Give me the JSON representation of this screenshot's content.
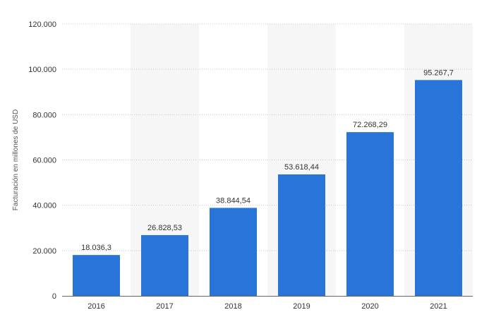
{
  "chart_data": {
    "type": "bar",
    "categories": [
      "2016",
      "2017",
      "2018",
      "2019",
      "2020",
      "2021"
    ],
    "values": [
      18036.3,
      26828.53,
      38844.54,
      53618.44,
      72268.29,
      95267.7
    ],
    "data_labels": [
      "18.036,3",
      "26.828,53",
      "38.844,54",
      "53.618,44",
      "72.268,29",
      "95.267,7"
    ],
    "y_ticks": [
      0,
      20000,
      40000,
      60000,
      80000,
      100000,
      120000
    ],
    "y_tick_labels": [
      "0",
      "20.000",
      "40.000",
      "60.000",
      "80.000",
      "100.000",
      "120.000"
    ],
    "ylabel": "Facturación en millones de USD",
    "xlabel": "",
    "title": "",
    "ylim": [
      0,
      120000
    ],
    "grid": true,
    "bar_color": "#2874d9"
  }
}
